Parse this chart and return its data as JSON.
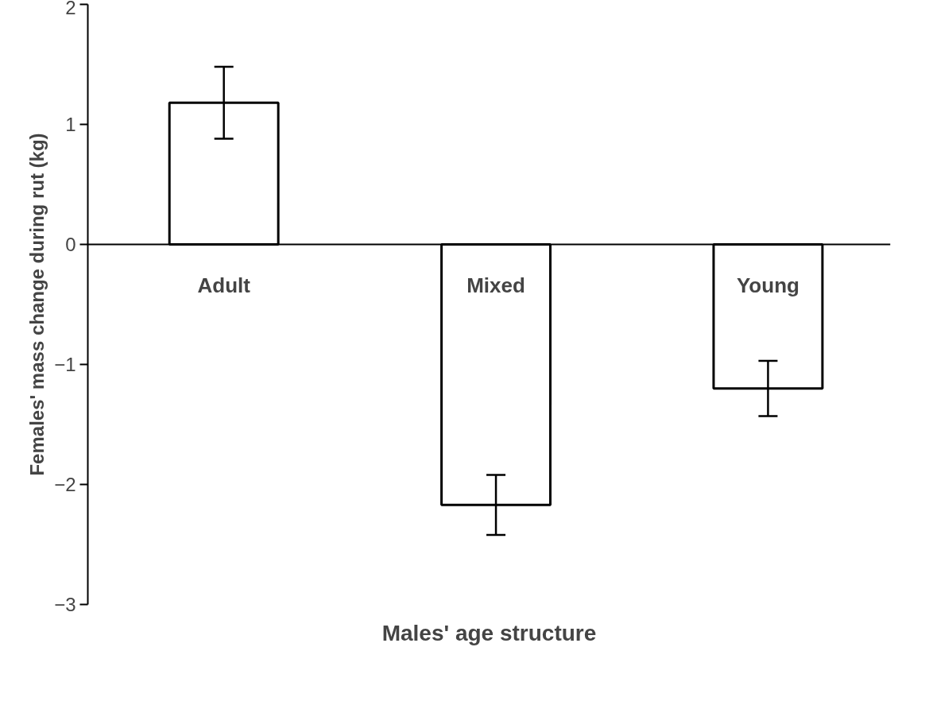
{
  "chart_data": {
    "type": "bar",
    "xlabel": "Males' age structure",
    "ylabel": "Females' mass change during rut (kg)",
    "categories": [
      "Adult",
      "Mixed",
      "Young"
    ],
    "series": [
      {
        "color": "#ffffff",
        "values": [
          1.18,
          -2.17,
          -1.2
        ],
        "errors": [
          0.3,
          0.25,
          0.23
        ]
      }
    ],
    "ylim": [
      -3,
      2
    ],
    "yticks": [
      -3,
      -2,
      -1,
      0,
      1,
      2
    ]
  }
}
